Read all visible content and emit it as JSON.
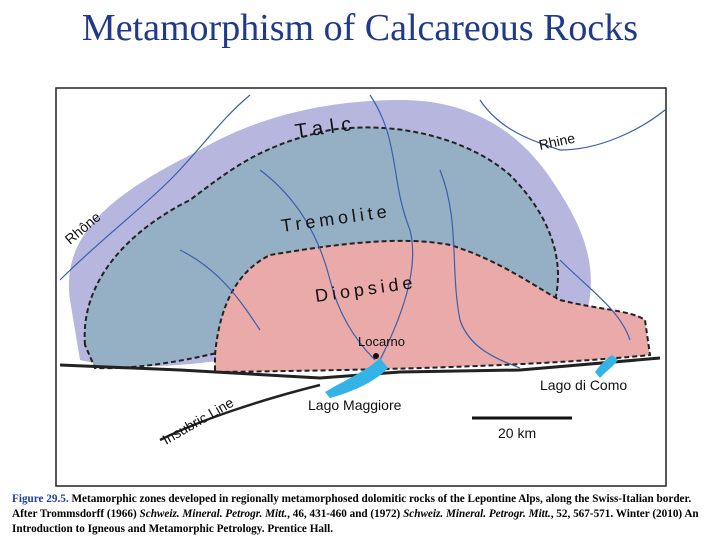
{
  "title": "Metamorphism of Calcareous Rocks",
  "map": {
    "labels": {
      "talc": "Talc",
      "rhine": "Rhine",
      "rhone": "Rhône",
      "tremolite": "Tremolite",
      "diopside": "Diopside",
      "locarno": "Locarno",
      "lago_maggiore": "Lago Maggiore",
      "lago_di_como": "Lago di Como",
      "insubric_line": "Insubric Line",
      "scale": "20 km"
    }
  },
  "caption": {
    "figure": "Figure 29.5.",
    "text1": " Metamorphic zones developed in regionally metamorphosed dolomitic rocks of the Lepontine Alps, along the Swiss-Italian border. After Trommsdorff (1966) ",
    "journal1": "Schweiz. Mineral. Petrogr. Mitt.",
    "text2": ", 46, 431-460  and (1972) ",
    "journal2": "Schweiz. Mineral. Petrogr. Mitt.",
    "text3": ", 52, 567-571. Winter (2010) An Introduction to Igneous and Metamorphic Petrology. Prentice Hall."
  }
}
